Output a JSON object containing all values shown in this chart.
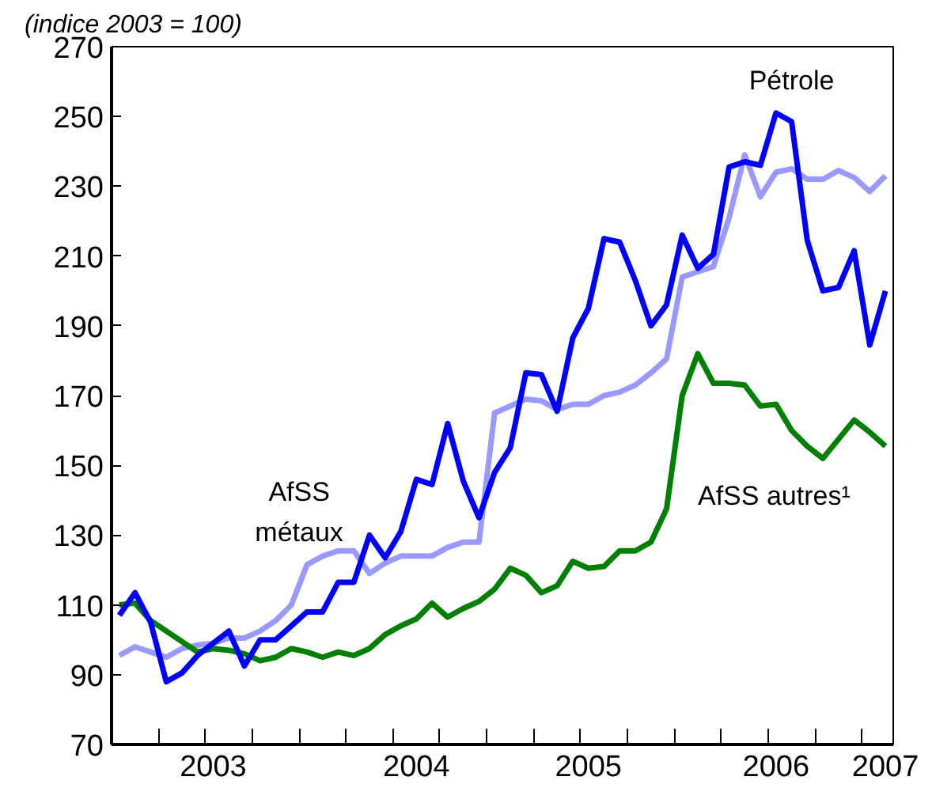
{
  "chart_data": {
    "type": "line",
    "subtitle": "(indice 2003 = 100)",
    "categories": [
      null,
      null,
      null,
      null,
      null,
      null,
      "2003",
      null,
      null,
      null,
      null,
      null,
      null,
      null,
      null,
      null,
      null,
      null,
      null,
      "2004",
      null,
      null,
      null,
      null,
      null,
      null,
      null,
      null,
      null,
      null,
      "2005",
      null,
      null,
      null,
      null,
      null,
      null,
      null,
      null,
      null,
      null,
      null,
      "2006",
      null,
      null,
      null,
      null,
      null,
      null,
      "2007"
    ],
    "series": [
      {
        "name": "AfSS métaux",
        "color": "#9999ff",
        "values": [
          95.5,
          98,
          96.5,
          95,
          97.5,
          98.5,
          99,
          100.5,
          100.5,
          102.5,
          105.5,
          110,
          121.5,
          124,
          125.5,
          125.5,
          119,
          122,
          124,
          124,
          124,
          126.5,
          128,
          128,
          165,
          167,
          169,
          168.5,
          166,
          167.5,
          167.5,
          170,
          171,
          173,
          176.5,
          180.5,
          204,
          205.5,
          207,
          221,
          239,
          227,
          234,
          235,
          232,
          232,
          234.5,
          232.5,
          228.5,
          233
        ]
      },
      {
        "name": "AfSS autres¹",
        "color": "#008000",
        "values": [
          110,
          110.5,
          105.5,
          102.5,
          99.5,
          96.5,
          97.5,
          97,
          96,
          94,
          95,
          97.5,
          96.5,
          95,
          96.5,
          95.5,
          97.5,
          101.5,
          104,
          106,
          110.5,
          106.5,
          109,
          111,
          114.5,
          120.5,
          118.5,
          113.5,
          115.5,
          122.5,
          120.5,
          121,
          125.5,
          125.5,
          128,
          137.5,
          170,
          182,
          173.5,
          173.5,
          173,
          167,
          167.5,
          160,
          155.5,
          152,
          157.5,
          163,
          159.5,
          155.5
        ]
      },
      {
        "name": "Pétrole",
        "color": "#0000ff",
        "values": [
          107,
          113.5,
          105,
          88,
          90.5,
          95.5,
          99,
          102.5,
          92.5,
          100,
          100,
          104,
          108,
          108,
          116.5,
          116.5,
          130,
          123.5,
          131,
          146,
          144.5,
          162,
          145.5,
          135,
          148,
          155,
          176.5,
          176,
          165.5,
          186.5,
          195,
          215,
          214,
          203,
          190,
          196,
          216,
          206.5,
          210.5,
          235.5,
          237,
          236,
          251,
          248.5,
          214.5,
          200,
          201,
          211.5,
          184.5,
          200
        ]
      }
    ],
    "ylim": [
      70,
      270
    ],
    "yticks": [
      70,
      90,
      110,
      130,
      150,
      170,
      190,
      210,
      230,
      250,
      270
    ],
    "line_style": "solid"
  }
}
